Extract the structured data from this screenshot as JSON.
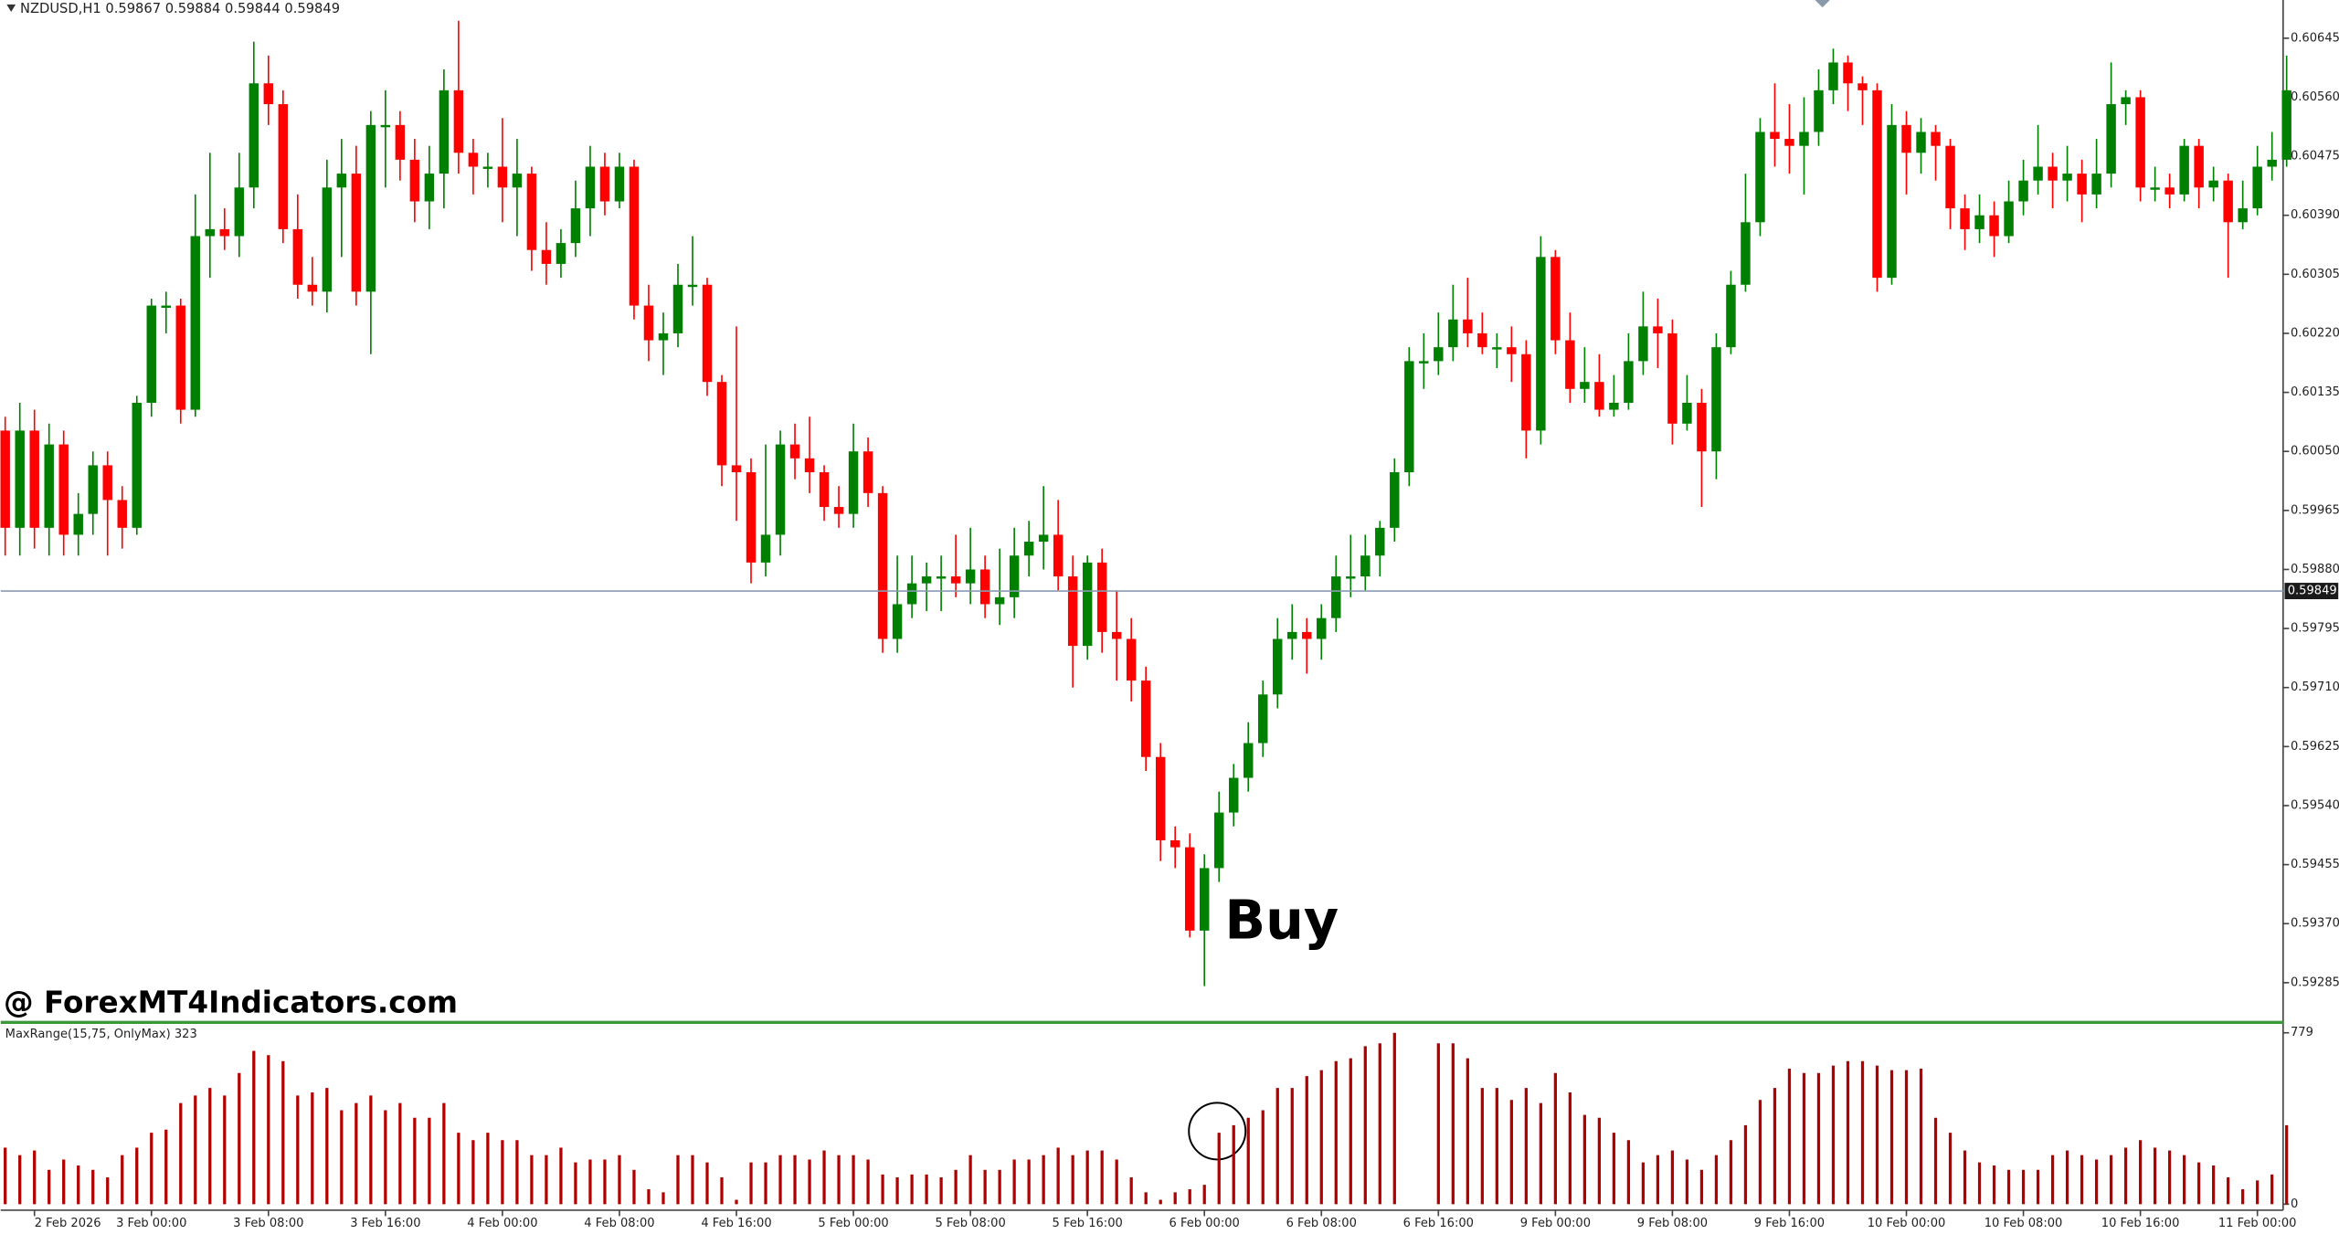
{
  "chart_data": {
    "type": "candlestick",
    "title": "NZDUSD,H1  0.59867 0.59884 0.59844 0.59849",
    "signal_label": "Buy",
    "watermark": "@ ForexMT4Indicators.com",
    "up_color": "#008000",
    "down_color": "#ff0000",
    "ylim": [
      0.5923,
      0.607
    ],
    "yticks": [
      {
        "value": 0.60645,
        "label": "0.60645"
      },
      {
        "value": 0.6056,
        "label": "0.60560"
      },
      {
        "value": 0.60475,
        "label": "0.60475"
      },
      {
        "value": 0.6039,
        "label": "0.60390"
      },
      {
        "value": 0.60305,
        "label": "0.60305"
      },
      {
        "value": 0.6022,
        "label": "0.60220"
      },
      {
        "value": 0.60135,
        "label": "0.60135"
      },
      {
        "value": 0.6005,
        "label": "0.60050"
      },
      {
        "value": 0.59965,
        "label": "0.59965"
      },
      {
        "value": 0.5988,
        "label": "0.59880"
      },
      {
        "value": 0.59795,
        "label": "0.59795"
      },
      {
        "value": 0.5971,
        "label": "0.59710"
      },
      {
        "value": 0.59625,
        "label": "0.59625"
      },
      {
        "value": 0.5954,
        "label": "0.59540"
      },
      {
        "value": 0.59455,
        "label": "0.59455"
      },
      {
        "value": 0.5937,
        "label": "0.59370"
      },
      {
        "value": 0.59285,
        "label": "0.59285"
      }
    ],
    "price_line": 0.59849,
    "xticks": [
      {
        "value": 2,
        "label": "2 Feb 2026"
      },
      {
        "value": 10,
        "label": "3 Feb 00:00"
      },
      {
        "value": 18,
        "label": "3 Feb 08:00"
      },
      {
        "value": 26,
        "label": "3 Feb 16:00"
      },
      {
        "value": 34,
        "label": "4 Feb 00:00"
      },
      {
        "value": 42,
        "label": "4 Feb 08:00"
      },
      {
        "value": 50,
        "label": "4 Feb 16:00"
      },
      {
        "value": 58,
        "label": "5 Feb 00:00"
      },
      {
        "value": 66,
        "label": "5 Feb 08:00"
      },
      {
        "value": 74,
        "label": "5 Feb 16:00"
      },
      {
        "value": 82,
        "label": "6 Feb 00:00"
      },
      {
        "value": 90,
        "label": "6 Feb 08:00"
      },
      {
        "value": 98,
        "label": "6 Feb 16:00"
      },
      {
        "value": 106,
        "label": "9 Feb 00:00"
      },
      {
        "value": 114,
        "label": "9 Feb 08:00"
      },
      {
        "value": 122,
        "label": "9 Feb 16:00"
      },
      {
        "value": 130,
        "label": "10 Feb 00:00"
      },
      {
        "value": 138,
        "label": "10 Feb 08:00"
      },
      {
        "value": 146,
        "label": "10 Feb 16:00"
      },
      {
        "value": 154,
        "label": "11 Feb 00:00"
      }
    ],
    "candles": [
      [
        0.6008,
        0.601,
        0.599,
        0.5994
      ],
      [
        0.5994,
        0.6012,
        0.599,
        0.6008
      ],
      [
        0.6008,
        0.6011,
        0.5991,
        0.5994
      ],
      [
        0.5994,
        0.6009,
        0.599,
        0.6006
      ],
      [
        0.6006,
        0.6008,
        0.599,
        0.5993
      ],
      [
        0.5993,
        0.5999,
        0.599,
        0.5996
      ],
      [
        0.5996,
        0.6005,
        0.5993,
        0.6003
      ],
      [
        0.6003,
        0.6005,
        0.599,
        0.5998
      ],
      [
        0.5998,
        0.6,
        0.5991,
        0.5994
      ],
      [
        0.5994,
        0.6013,
        0.5993,
        0.6012
      ],
      [
        0.6012,
        0.6027,
        0.601,
        0.6026
      ],
      [
        0.6026,
        0.6028,
        0.6022,
        0.6026
      ],
      [
        0.6026,
        0.6027,
        0.6009,
        0.6011
      ],
      [
        0.6011,
        0.6042,
        0.601,
        0.6036
      ],
      [
        0.6036,
        0.6048,
        0.603,
        0.6037
      ],
      [
        0.6037,
        0.604,
        0.6034,
        0.6036
      ],
      [
        0.6036,
        0.6048,
        0.6033,
        0.6043
      ],
      [
        0.6043,
        0.6064,
        0.604,
        0.6058
      ],
      [
        0.6058,
        0.6062,
        0.6052,
        0.6055
      ],
      [
        0.6055,
        0.6057,
        0.6035,
        0.6037
      ],
      [
        0.6037,
        0.6042,
        0.6027,
        0.6029
      ],
      [
        0.6029,
        0.6033,
        0.6026,
        0.6028
      ],
      [
        0.6028,
        0.6047,
        0.6025,
        0.6043
      ],
      [
        0.6043,
        0.605,
        0.6033,
        0.6045
      ],
      [
        0.6045,
        0.6049,
        0.6026,
        0.6028
      ],
      [
        0.6028,
        0.6054,
        0.6019,
        0.6052
      ],
      [
        0.6052,
        0.6057,
        0.6043,
        0.6052
      ],
      [
        0.6052,
        0.6054,
        0.6044,
        0.6047
      ],
      [
        0.6047,
        0.605,
        0.6038,
        0.6041
      ],
      [
        0.6041,
        0.6049,
        0.6037,
        0.6045
      ],
      [
        0.6045,
        0.606,
        0.604,
        0.6057
      ],
      [
        0.6057,
        0.6067,
        0.6045,
        0.6048
      ],
      [
        0.6048,
        0.605,
        0.6042,
        0.6046
      ],
      [
        0.6046,
        0.6048,
        0.6043,
        0.6046
      ],
      [
        0.6046,
        0.6053,
        0.6038,
        0.6043
      ],
      [
        0.6043,
        0.605,
        0.6036,
        0.6045
      ],
      [
        0.6045,
        0.6046,
        0.6031,
        0.6034
      ],
      [
        0.6034,
        0.6038,
        0.6029,
        0.6032
      ],
      [
        0.6032,
        0.6037,
        0.603,
        0.6035
      ],
      [
        0.6035,
        0.6044,
        0.6033,
        0.604
      ],
      [
        0.604,
        0.6049,
        0.6036,
        0.6046
      ],
      [
        0.6046,
        0.6048,
        0.6039,
        0.6041
      ],
      [
        0.6041,
        0.6048,
        0.604,
        0.6046
      ],
      [
        0.6046,
        0.6047,
        0.6024,
        0.6026
      ],
      [
        0.6026,
        0.6029,
        0.6018,
        0.6021
      ],
      [
        0.6021,
        0.6025,
        0.6016,
        0.6022
      ],
      [
        0.6022,
        0.6032,
        0.602,
        0.6029
      ],
      [
        0.6029,
        0.6036,
        0.6026,
        0.6029
      ],
      [
        0.6029,
        0.603,
        0.6013,
        0.6015
      ],
      [
        0.6015,
        0.6016,
        0.6,
        0.6003
      ],
      [
        0.6003,
        0.6023,
        0.5995,
        0.6002
      ],
      [
        0.6002,
        0.6004,
        0.5986,
        0.5989
      ],
      [
        0.5989,
        0.6006,
        0.5987,
        0.5993
      ],
      [
        0.5993,
        0.6008,
        0.599,
        0.6006
      ],
      [
        0.6006,
        0.6009,
        0.6001,
        0.6004
      ],
      [
        0.6004,
        0.601,
        0.5999,
        0.6002
      ],
      [
        0.6002,
        0.6003,
        0.5995,
        0.5997
      ],
      [
        0.5997,
        0.6,
        0.5994,
        0.5996
      ],
      [
        0.5996,
        0.6009,
        0.5994,
        0.6005
      ],
      [
        0.6005,
        0.6007,
        0.5997,
        0.5999
      ],
      [
        0.5999,
        0.6,
        0.5976,
        0.5978
      ],
      [
        0.5978,
        0.599,
        0.5976,
        0.5983
      ],
      [
        0.5983,
        0.599,
        0.5981,
        0.5986
      ],
      [
        0.5986,
        0.5989,
        0.5982,
        0.5987
      ],
      [
        0.5987,
        0.599,
        0.5982,
        0.5987
      ],
      [
        0.5987,
        0.5993,
        0.5984,
        0.5986
      ],
      [
        0.5986,
        0.5994,
        0.5983,
        0.5988
      ],
      [
        0.5988,
        0.599,
        0.5981,
        0.5983
      ],
      [
        0.5983,
        0.5991,
        0.598,
        0.5984
      ],
      [
        0.5984,
        0.5994,
        0.5981,
        0.599
      ],
      [
        0.599,
        0.5995,
        0.5987,
        0.5992
      ],
      [
        0.5992,
        0.6,
        0.5988,
        0.5993
      ],
      [
        0.5993,
        0.5998,
        0.5985,
        0.5987
      ],
      [
        0.5987,
        0.599,
        0.5971,
        0.5977
      ],
      [
        0.5977,
        0.599,
        0.5975,
        0.5989
      ],
      [
        0.5989,
        0.5991,
        0.5976,
        0.5979
      ],
      [
        0.5979,
        0.5985,
        0.5972,
        0.5978
      ],
      [
        0.5978,
        0.5981,
        0.5969,
        0.5972
      ],
      [
        0.5972,
        0.5974,
        0.5959,
        0.5961
      ],
      [
        0.5961,
        0.5963,
        0.5946,
        0.5949
      ],
      [
        0.5949,
        0.5951,
        0.5945,
        0.5948
      ],
      [
        0.5948,
        0.595,
        0.5935,
        0.5936
      ],
      [
        0.5936,
        0.5947,
        0.5928,
        0.5945
      ],
      [
        0.5945,
        0.5956,
        0.5943,
        0.5953
      ],
      [
        0.5953,
        0.596,
        0.5951,
        0.5958
      ],
      [
        0.5958,
        0.5966,
        0.5956,
        0.5963
      ],
      [
        0.5963,
        0.5972,
        0.5961,
        0.597
      ],
      [
        0.597,
        0.5981,
        0.5968,
        0.5978
      ],
      [
        0.5978,
        0.5983,
        0.5975,
        0.5979
      ],
      [
        0.5979,
        0.5981,
        0.5973,
        0.5978
      ],
      [
        0.5978,
        0.5983,
        0.5975,
        0.5981
      ],
      [
        0.5981,
        0.599,
        0.5979,
        0.5987
      ],
      [
        0.5987,
        0.5993,
        0.5984,
        0.5987
      ],
      [
        0.5987,
        0.5993,
        0.5985,
        0.599
      ],
      [
        0.599,
        0.5995,
        0.5987,
        0.5994
      ],
      [
        0.5994,
        0.6004,
        0.5992,
        0.6002
      ],
      [
        0.6002,
        0.602,
        0.6,
        0.6018
      ],
      [
        0.6018,
        0.6022,
        0.6014,
        0.6018
      ],
      [
        0.6018,
        0.6025,
        0.6016,
        0.602
      ],
      [
        0.602,
        0.6029,
        0.6018,
        0.6024
      ],
      [
        0.6024,
        0.603,
        0.602,
        0.6022
      ],
      [
        0.6022,
        0.6025,
        0.6019,
        0.602
      ],
      [
        0.602,
        0.6022,
        0.6017,
        0.602
      ],
      [
        0.602,
        0.6023,
        0.6015,
        0.6019
      ],
      [
        0.6019,
        0.6021,
        0.6004,
        0.6008
      ],
      [
        0.6008,
        0.6036,
        0.6006,
        0.6033
      ],
      [
        0.6033,
        0.6034,
        0.6019,
        0.6021
      ],
      [
        0.6021,
        0.6025,
        0.6012,
        0.6014
      ],
      [
        0.6014,
        0.602,
        0.6012,
        0.6015
      ],
      [
        0.6015,
        0.6019,
        0.601,
        0.6011
      ],
      [
        0.6011,
        0.6016,
        0.601,
        0.6012
      ],
      [
        0.6012,
        0.6022,
        0.6011,
        0.6018
      ],
      [
        0.6018,
        0.6028,
        0.6016,
        0.6023
      ],
      [
        0.6023,
        0.6027,
        0.6017,
        0.6022
      ],
      [
        0.6022,
        0.6024,
        0.6006,
        0.6009
      ],
      [
        0.6009,
        0.6016,
        0.6008,
        0.6012
      ],
      [
        0.6012,
        0.6014,
        0.5997,
        0.6005
      ],
      [
        0.6005,
        0.6022,
        0.6001,
        0.602
      ],
      [
        0.602,
        0.6031,
        0.6019,
        0.6029
      ],
      [
        0.6029,
        0.6045,
        0.6028,
        0.6038
      ],
      [
        0.6038,
        0.6053,
        0.6036,
        0.6051
      ],
      [
        0.6051,
        0.6058,
        0.6046,
        0.605
      ],
      [
        0.605,
        0.6055,
        0.6045,
        0.6049
      ],
      [
        0.6049,
        0.6056,
        0.6042,
        0.6051
      ],
      [
        0.6051,
        0.606,
        0.6049,
        0.6057
      ],
      [
        0.6057,
        0.6063,
        0.6055,
        0.6061
      ],
      [
        0.6061,
        0.6062,
        0.6054,
        0.6058
      ],
      [
        0.6058,
        0.6059,
        0.6052,
        0.6057
      ],
      [
        0.6057,
        0.6058,
        0.6028,
        0.603
      ],
      [
        0.603,
        0.6055,
        0.6029,
        0.6052
      ],
      [
        0.6052,
        0.6054,
        0.6042,
        0.6048
      ],
      [
        0.6048,
        0.6053,
        0.6045,
        0.6051
      ],
      [
        0.6051,
        0.6052,
        0.6044,
        0.6049
      ],
      [
        0.6049,
        0.605,
        0.6037,
        0.604
      ],
      [
        0.604,
        0.6042,
        0.6034,
        0.6037
      ],
      [
        0.6037,
        0.6042,
        0.6035,
        0.6039
      ],
      [
        0.6039,
        0.6041,
        0.6033,
        0.6036
      ],
      [
        0.6036,
        0.6044,
        0.6035,
        0.6041
      ],
      [
        0.6041,
        0.6047,
        0.6039,
        0.6044
      ],
      [
        0.6044,
        0.6052,
        0.6042,
        0.6046
      ],
      [
        0.6046,
        0.6048,
        0.604,
        0.6044
      ],
      [
        0.6044,
        0.6049,
        0.6041,
        0.6045
      ],
      [
        0.6045,
        0.6047,
        0.6038,
        0.6042
      ],
      [
        0.6042,
        0.605,
        0.604,
        0.6045
      ],
      [
        0.6045,
        0.6061,
        0.6043,
        0.6055
      ],
      [
        0.6055,
        0.6057,
        0.6052,
        0.6056
      ],
      [
        0.6056,
        0.6057,
        0.6041,
        0.6043
      ],
      [
        0.6043,
        0.6046,
        0.6041,
        0.6043
      ],
      [
        0.6043,
        0.6045,
        0.604,
        0.6042
      ],
      [
        0.6042,
        0.605,
        0.6041,
        0.6049
      ],
      [
        0.6049,
        0.605,
        0.604,
        0.6043
      ],
      [
        0.6043,
        0.6046,
        0.6041,
        0.6044
      ],
      [
        0.6044,
        0.6045,
        0.603,
        0.6038
      ],
      [
        0.6038,
        0.6044,
        0.6037,
        0.604
      ],
      [
        0.604,
        0.6049,
        0.6039,
        0.6046
      ],
      [
        0.6046,
        0.6051,
        0.6044,
        0.6047
      ],
      [
        0.6047,
        0.6062,
        0.6046,
        0.6057
      ]
    ],
    "indicator": {
      "type": "histogram",
      "title": "MaxRange(15,75, OnlyMax) 323",
      "color": "#b00000",
      "ylim": [
        0,
        779
      ],
      "yticks": [
        779,
        0
      ],
      "values": [
        257,
        223,
        244,
        156,
        203,
        176,
        156,
        122,
        223,
        257,
        325,
        339,
        460,
        494,
        528,
        494,
        596,
        697,
        677,
        650,
        494,
        508,
        528,
        427,
        460,
        494,
        427,
        460,
        393,
        393,
        460,
        325,
        291,
        325,
        291,
        291,
        223,
        223,
        257,
        190,
        203,
        203,
        223,
        156,
        68,
        54,
        223,
        223,
        190,
        122,
        20,
        190,
        190,
        223,
        223,
        203,
        244,
        223,
        223,
        203,
        135,
        122,
        135,
        135,
        122,
        156,
        223,
        156,
        156,
        203,
        203,
        223,
        257,
        223,
        244,
        244,
        203,
        122,
        54,
        20,
        54,
        68,
        88,
        325,
        359,
        393,
        427,
        528,
        528,
        582,
        609,
        650,
        663,
        718,
        731,
        779,
        null,
        null,
        731,
        731,
        663,
        528,
        528,
        474,
        528,
        460,
        596,
        508,
        406,
        393,
        325,
        291,
        190,
        223,
        244,
        203,
        156,
        223,
        291,
        359,
        474,
        528,
        616,
        596,
        596,
        630,
        650,
        650,
        630,
        609,
        609,
        616,
        393,
        325,
        244,
        190,
        176,
        156,
        156,
        156,
        223,
        244,
        223,
        203,
        223,
        257,
        291,
        257,
        244,
        223,
        190,
        176,
        122,
        68,
        108,
        135,
        359
      ]
    }
  }
}
